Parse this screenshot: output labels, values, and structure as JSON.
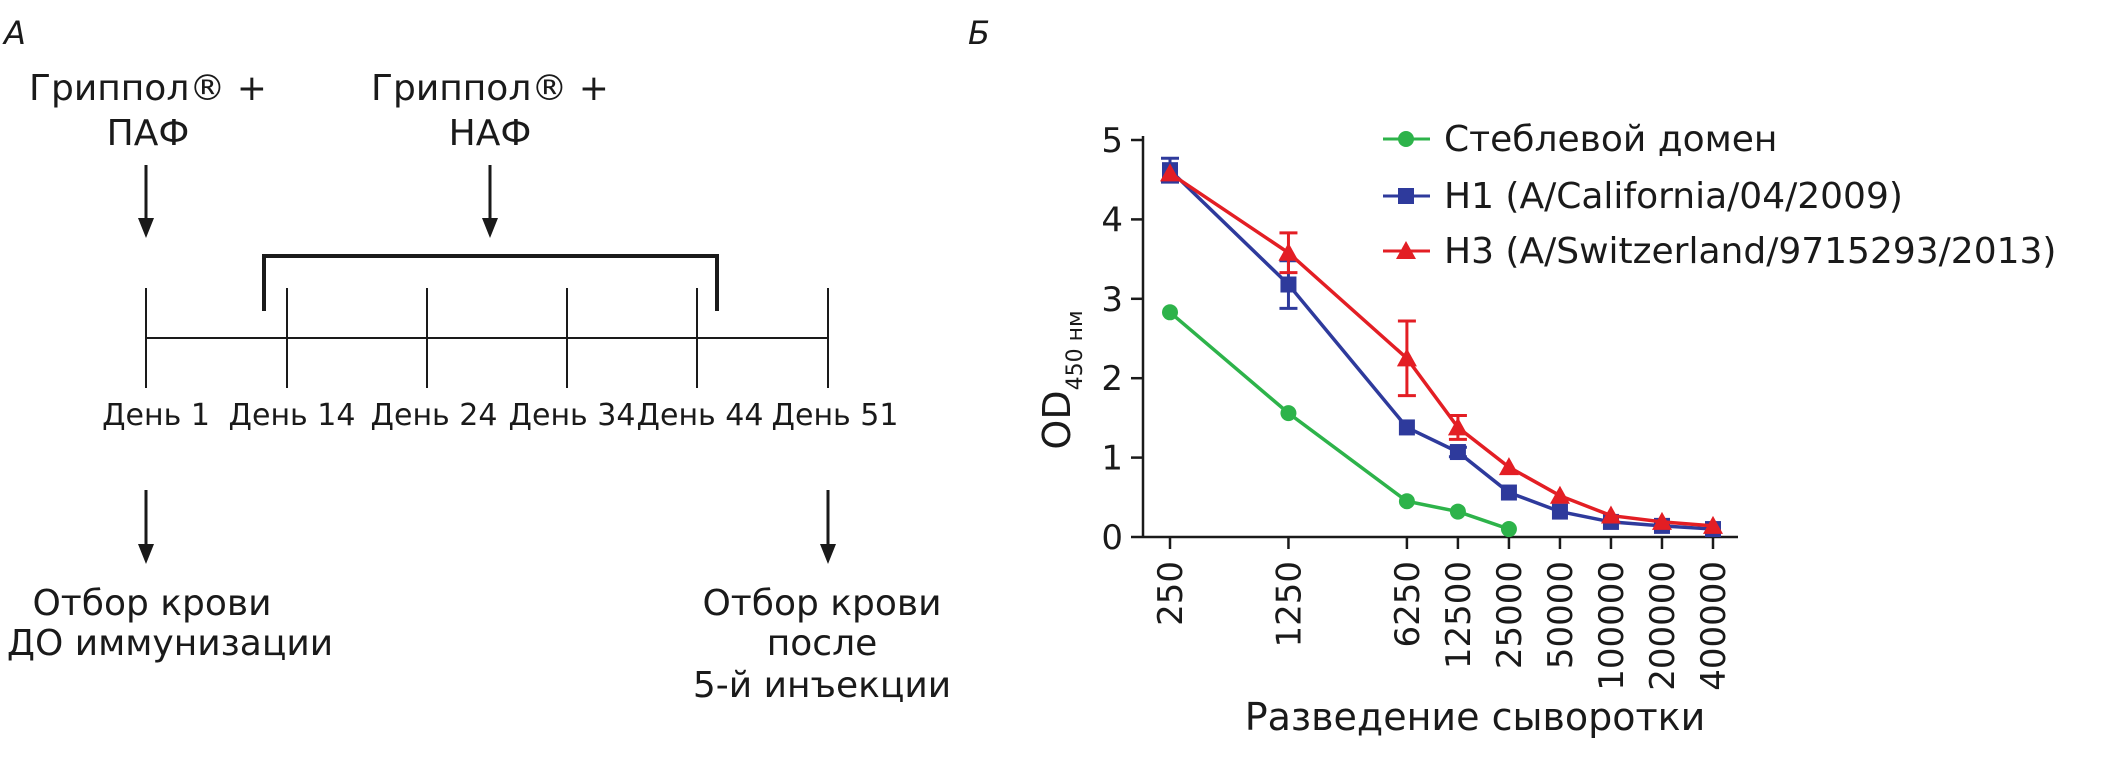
{
  "panel_a": {
    "label": "А",
    "top_left_line1": "Гриппол® +",
    "top_left_line2": "ПАФ",
    "top_mid_line1": "Гриппол® +",
    "top_mid_line2": "НАФ",
    "days": [
      "День 1",
      "День 14",
      "День 24",
      "День 34",
      "День 44",
      "День 51"
    ],
    "bottom_left_line1": "Отбор крови",
    "bottom_left_line2": "ДО иммунизации",
    "bottom_right_line1": "Отбор крови",
    "bottom_right_line2": "после",
    "bottom_right_line3": "5-й инъекции"
  },
  "panel_b": {
    "label": "Б"
  },
  "chart_data": {
    "type": "line",
    "title": "",
    "xlabel": "Разведение сыворотки",
    "ylabel_main": "OD",
    "ylabel_sub": "450 нм",
    "x_scale": "log",
    "categories": [
      "250",
      "1250",
      "6250",
      "12500",
      "25000",
      "50000",
      "100000",
      "200000",
      "400000"
    ],
    "x": [
      250,
      1250,
      6250,
      12500,
      25000,
      50000,
      100000,
      200000,
      400000
    ],
    "ylim": [
      0,
      5
    ],
    "yticks": [
      "0",
      "1",
      "2",
      "3",
      "4",
      "5"
    ],
    "grid": false,
    "legend_position": "top-right",
    "series": [
      {
        "name": "Стеблевой домен",
        "color": "#2db34a",
        "marker": "circle",
        "values": [
          2.83,
          1.56,
          0.45,
          0.32,
          0.1,
          null,
          null,
          null,
          null
        ],
        "errors": [
          0,
          0,
          0,
          0,
          0,
          null,
          null,
          null,
          null
        ]
      },
      {
        "name": "H1 (A/California/04/2009)",
        "color": "#2e3a9c",
        "marker": "square",
        "values": [
          4.62,
          3.18,
          1.38,
          1.07,
          0.56,
          0.32,
          0.19,
          0.14,
          0.1
        ],
        "errors": [
          0.15,
          0.3,
          0,
          0.06,
          0,
          0,
          0,
          0,
          0
        ]
      },
      {
        "name": "H3 (A/Switzerland/9715293/2013)",
        "color": "#e31e24",
        "marker": "triangle",
        "values": [
          4.58,
          3.58,
          2.25,
          1.38,
          0.88,
          0.52,
          0.27,
          0.19,
          0.14
        ],
        "errors": [
          0,
          0.25,
          0.47,
          0.15,
          0,
          0,
          0,
          0,
          0
        ]
      }
    ]
  }
}
